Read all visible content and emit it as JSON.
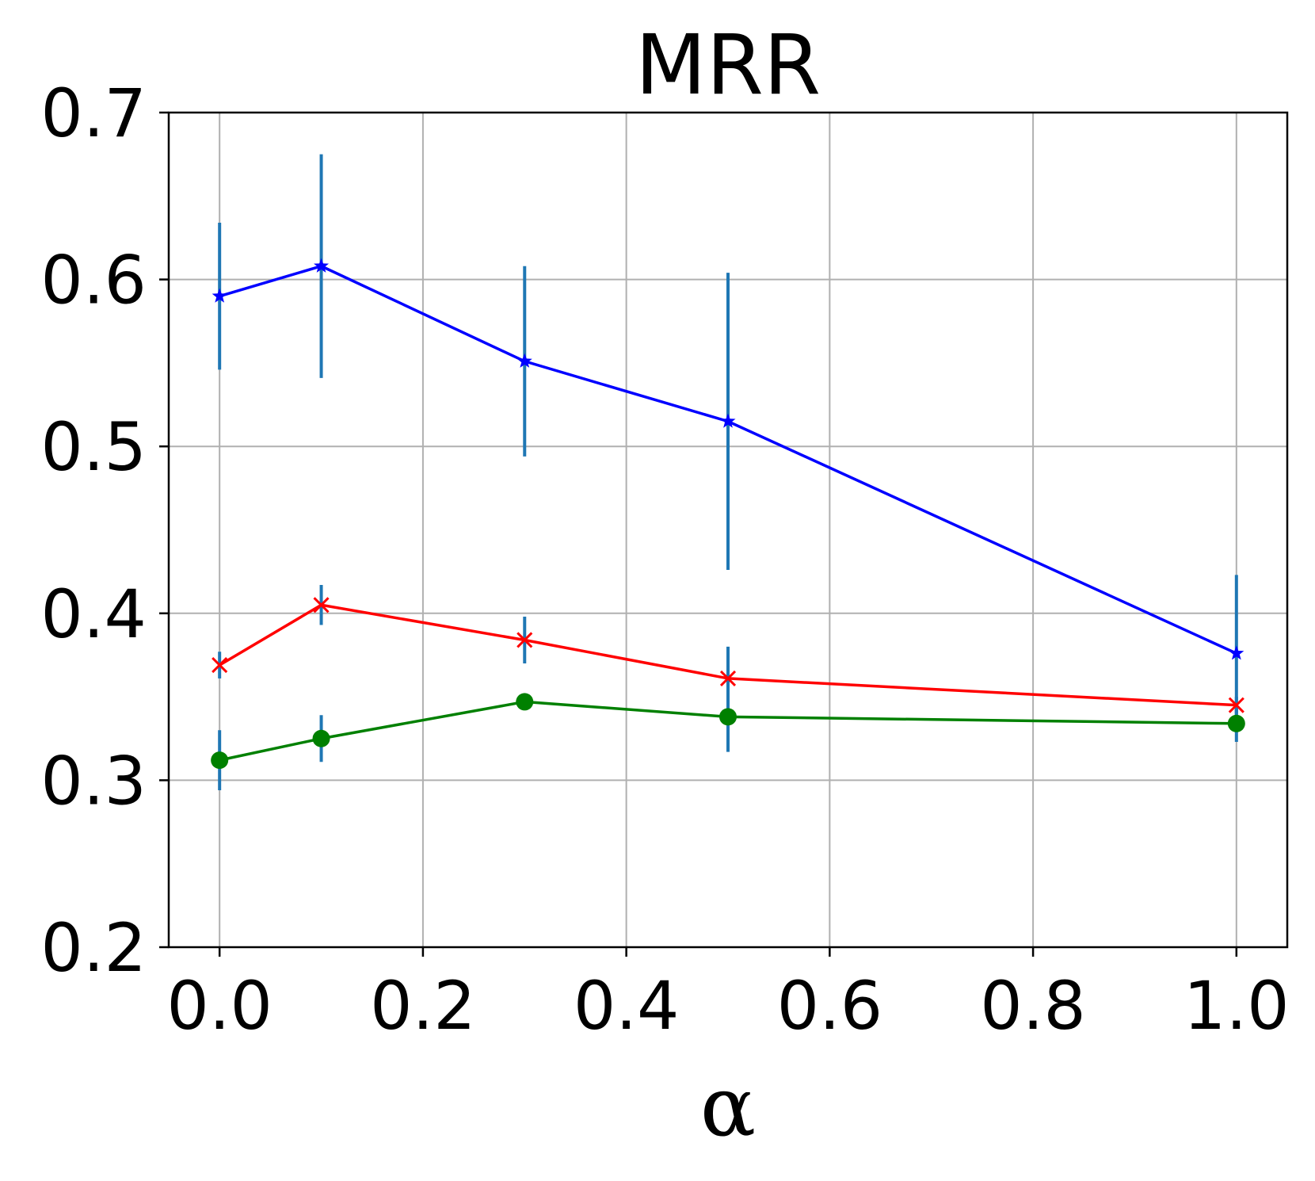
{
  "chart_data": {
    "type": "line",
    "title": "MRR",
    "xlabel": "α",
    "ylabel": "",
    "xlim": [
      -0.05,
      1.05
    ],
    "ylim": [
      0.2,
      0.7
    ],
    "xticks": [
      "0.0",
      "0.2",
      "0.4",
      "0.6",
      "0.8",
      "1.0"
    ],
    "yticks": [
      "0.2",
      "0.3",
      "0.4",
      "0.5",
      "0.6",
      "0.7"
    ],
    "grid": true,
    "errorbar_color": "#1f77b4",
    "series": [
      {
        "color": "#0000ff",
        "marker": "star",
        "x": [
          0.0,
          0.1,
          0.3,
          0.5,
          1.0
        ],
        "y": [
          0.59,
          0.608,
          0.551,
          0.515,
          0.376
        ],
        "err": [
          0.044,
          0.067,
          0.057,
          0.089,
          0.047
        ]
      },
      {
        "color": "#ff0000",
        "marker": "x",
        "x": [
          0.0,
          0.1,
          0.3,
          0.5,
          1.0
        ],
        "y": [
          0.369,
          0.405,
          0.384,
          0.361,
          0.345
        ],
        "err": [
          0.008,
          0.012,
          0.014,
          0.019,
          0.005
        ]
      },
      {
        "color": "#008000",
        "marker": "circle",
        "x": [
          0.0,
          0.1,
          0.3,
          0.5,
          1.0
        ],
        "y": [
          0.312,
          0.325,
          0.347,
          0.338,
          0.334
        ],
        "err": [
          0.018,
          0.014,
          0.004,
          0.021,
          0.011
        ]
      }
    ]
  }
}
